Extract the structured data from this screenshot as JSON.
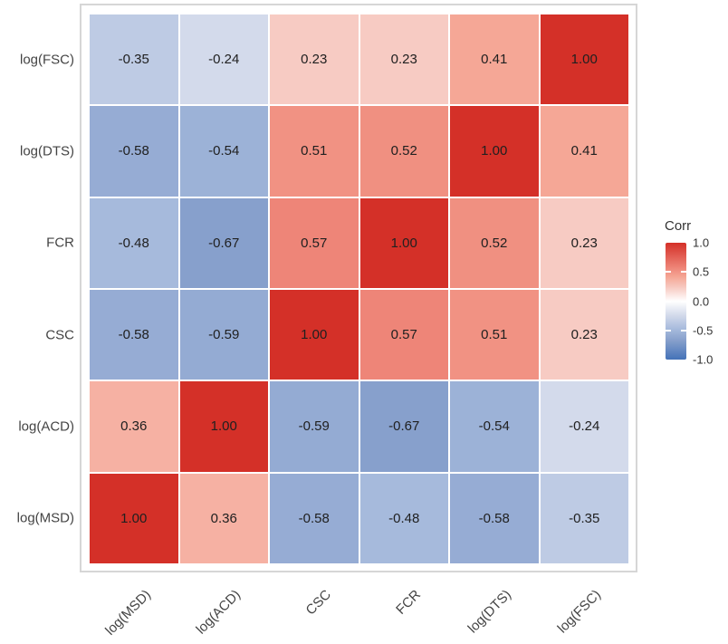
{
  "chart_data": {
    "type": "heatmap",
    "title": "",
    "x_categories": [
      "log(MSD)",
      "log(ACD)",
      "CSC",
      "FCR",
      "log(DTS)",
      "log(FSC)"
    ],
    "y_categories": [
      "log(FSC)",
      "log(DTS)",
      "FCR",
      "CSC",
      "log(ACD)",
      "log(MSD)"
    ],
    "matrix": [
      [
        -0.35,
        -0.24,
        0.23,
        0.23,
        0.41,
        1.0
      ],
      [
        -0.58,
        -0.54,
        0.51,
        0.52,
        1.0,
        0.41
      ],
      [
        -0.48,
        -0.67,
        0.57,
        1.0,
        0.52,
        0.23
      ],
      [
        -0.58,
        -0.59,
        1.0,
        0.57,
        0.51,
        0.23
      ],
      [
        0.36,
        1.0,
        -0.59,
        -0.67,
        -0.54,
        -0.24
      ],
      [
        1.0,
        0.36,
        -0.58,
        -0.48,
        -0.58,
        -0.35
      ]
    ],
    "value_decimals": 2,
    "legend": {
      "title": "Corr",
      "tick_labels": [
        "1.0",
        "0.5",
        "0.0",
        "-0.5",
        "-1.0"
      ],
      "tick_values": [
        1.0,
        0.5,
        0.0,
        -0.5,
        -1.0
      ],
      "range": [
        -1.0,
        1.0
      ],
      "position": "right"
    },
    "colorscale": {
      "stops": [
        {
          "v": -1.0,
          "color": "#4472B8"
        },
        {
          "v": -0.67,
          "color": "#87A0CC"
        },
        {
          "v": -0.48,
          "color": "#A6BADC"
        },
        {
          "v": -0.24,
          "color": "#D3DAEB"
        },
        {
          "v": 0.0,
          "color": "#FFFFFF"
        },
        {
          "v": 0.23,
          "color": "#F7CBC3"
        },
        {
          "v": 0.41,
          "color": "#F5A796"
        },
        {
          "v": 0.57,
          "color": "#EE8578"
        },
        {
          "v": 1.0,
          "color": "#D43028"
        }
      ]
    },
    "grid": false,
    "x_label_angle_deg": 45
  },
  "colors": {
    "background": "#FFFFFF",
    "panel_border": "#D6D6D6",
    "cell_gap": "#FFFFFF",
    "cell_text": "#202020",
    "axis_text": "#444444",
    "legend_text": "#333333",
    "positive_end": "#D43028",
    "negative_end": "#4472B8"
  }
}
